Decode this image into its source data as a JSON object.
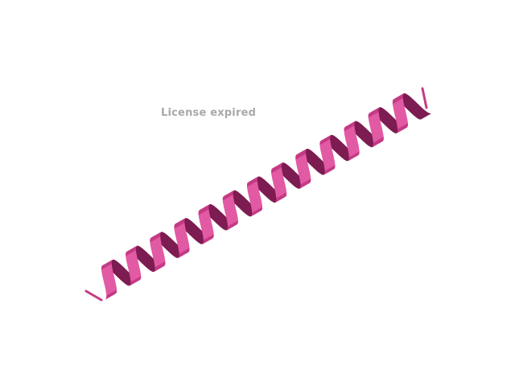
{
  "watermark": {
    "text": "License expired"
  },
  "structure": {
    "type": "alpha-helix-cartoon",
    "helix_turns": 13
  },
  "colors": {
    "background": "#ffffff",
    "watermark": "#a9a9a9",
    "ribbon_light": "#e25aa4",
    "ribbon_mid": "#c63b85",
    "ribbon_dark": "#7d1d52"
  }
}
